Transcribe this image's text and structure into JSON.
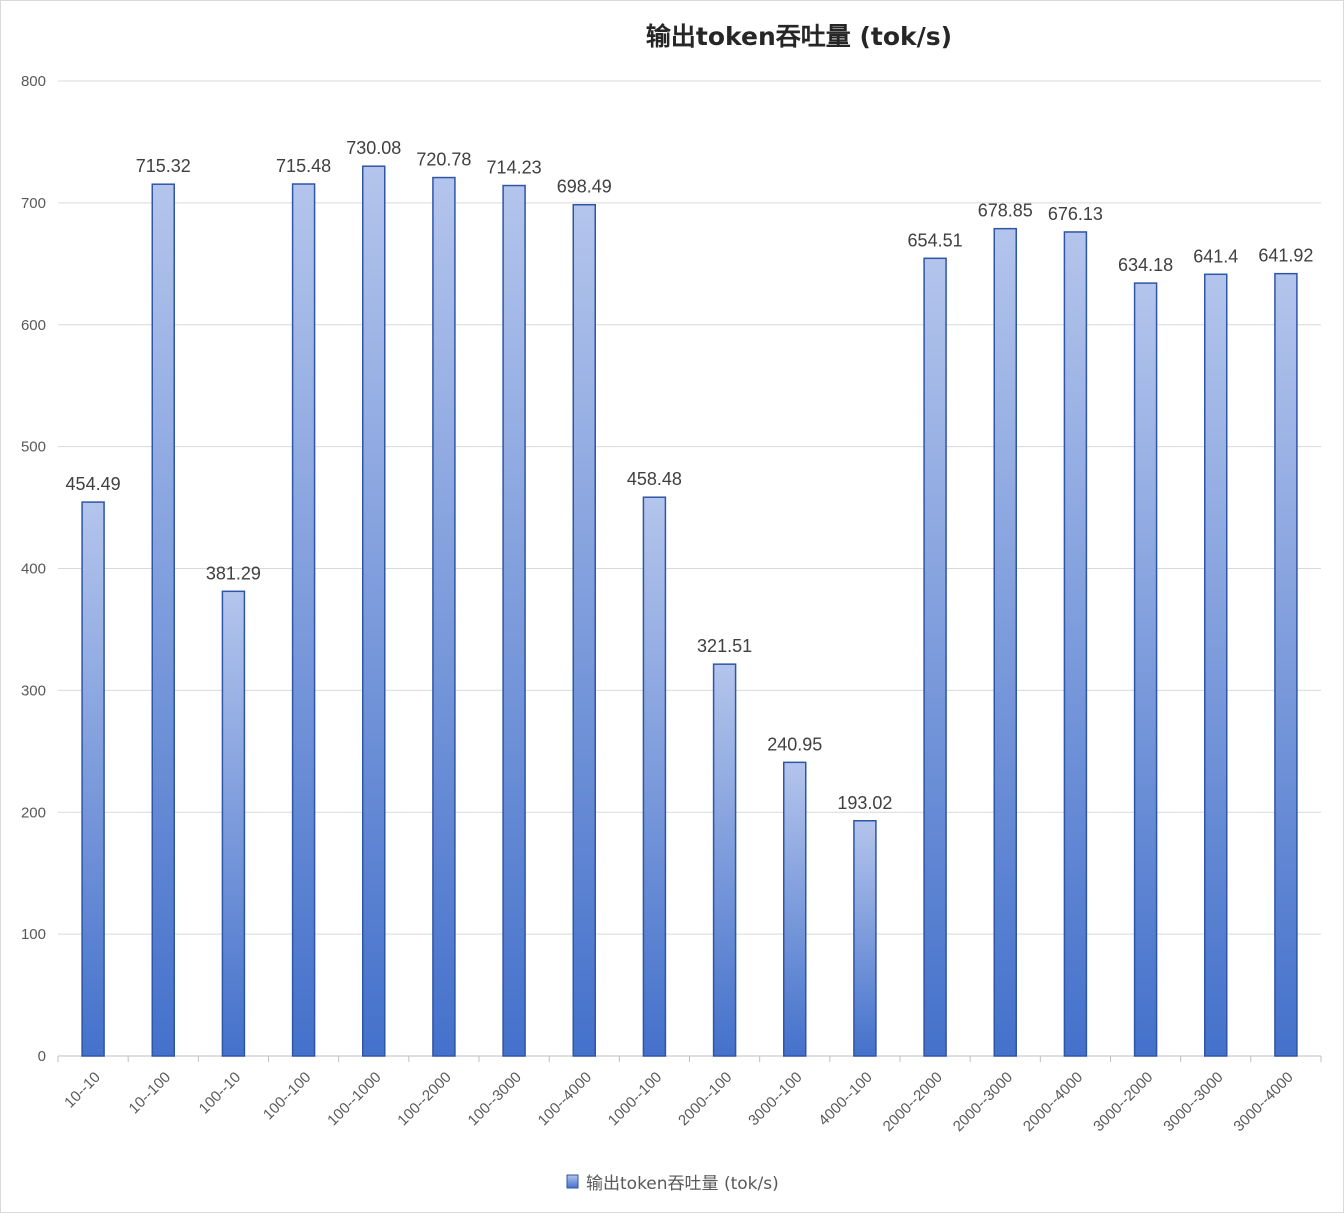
{
  "chart_data": {
    "type": "bar",
    "title": "输出token吞吐量 (tok/s)",
    "xlabel": "",
    "ylabel": "",
    "ylim": [
      0,
      800
    ],
    "yticks": [
      0,
      100,
      200,
      300,
      400,
      500,
      600,
      700,
      800
    ],
    "grid": true,
    "legend_position": "bottom",
    "bar_color": "#4472c4",
    "categories": [
      "10--10",
      "10--100",
      "100--10",
      "100--100",
      "100--1000",
      "100--2000",
      "100--3000",
      "100--4000",
      "1000--100",
      "2000--100",
      "3000--100",
      "4000--100",
      "2000--2000",
      "2000--3000",
      "2000--4000",
      "3000--2000",
      "3000--3000",
      "3000--4000"
    ],
    "series": [
      {
        "name": "输出token吞吐量 (tok/s)",
        "values": [
          454.49,
          715.32,
          381.29,
          715.48,
          730.08,
          720.78,
          714.23,
          698.49,
          458.48,
          321.51,
          240.95,
          193.02,
          654.51,
          678.85,
          676.13,
          634.18,
          641.4,
          641.92
        ],
        "labels": [
          "454.49",
          "715.32",
          "381.29",
          "715.48",
          "730.08",
          "720.78",
          "714.23",
          "698.49",
          "458.48",
          "321.51",
          "240.95",
          "193.02",
          "654.51",
          "678.85",
          "676.13",
          "634.18",
          "641.4",
          "641.92"
        ]
      }
    ]
  }
}
